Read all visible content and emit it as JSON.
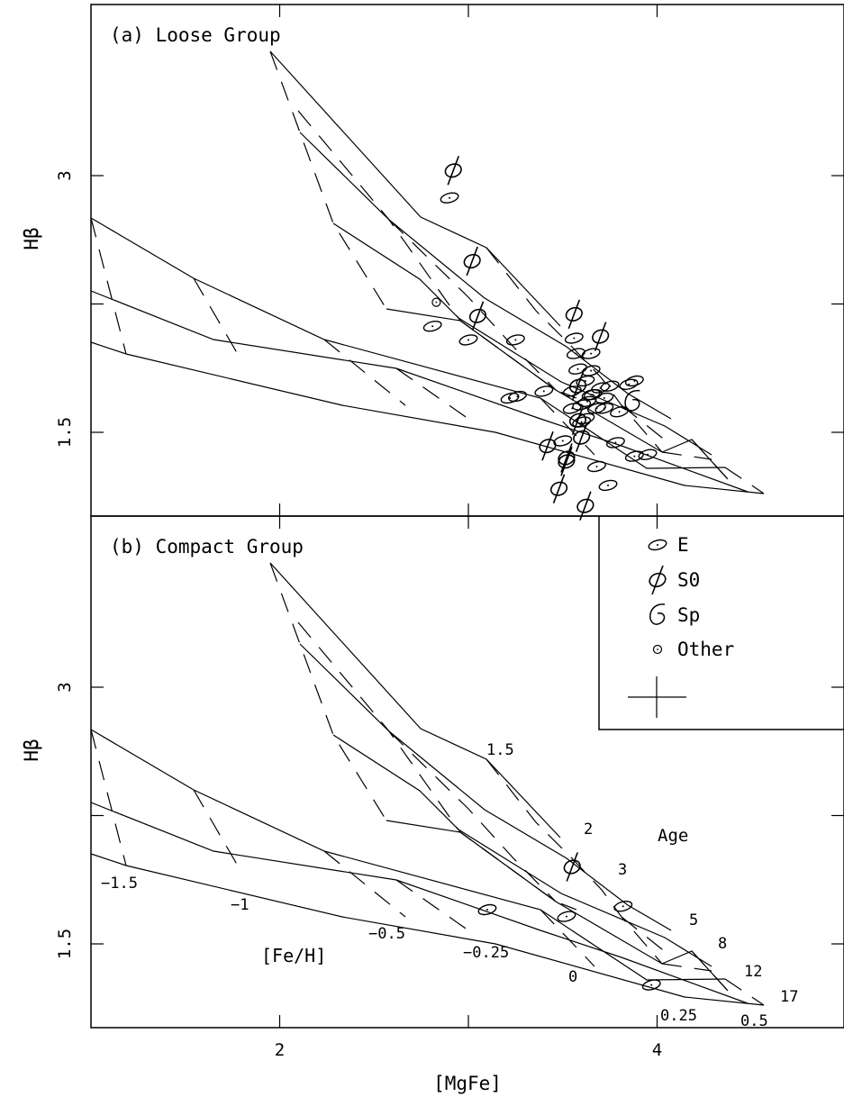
{
  "chart_data": [
    {
      "type": "scatter",
      "panel_label": "(a) Loose Group",
      "ylabel": "Hβ",
      "xlim": [
        1.0,
        5.0
      ],
      "ylim": [
        1.0,
        4.0
      ],
      "yticks": [
        {
          "value": 3.0,
          "label": "3"
        },
        {
          "value": 1.5,
          "label": "1.5"
        }
      ],
      "grid": "age-metallicity model grid (solid = constant age, dashed = constant [Fe/H])",
      "series": [
        {
          "name": "E",
          "marker": "ellipse",
          "points": [
            [
              2.9,
              2.87
            ],
            [
              3.0,
              2.04
            ],
            [
              3.25,
              2.04
            ],
            [
              2.81,
              2.12
            ],
            [
              3.22,
              1.7
            ],
            [
              3.26,
              1.71
            ],
            [
              3.4,
              1.74
            ],
            [
              3.56,
              2.05
            ],
            [
              3.57,
              1.96
            ],
            [
              3.58,
              1.87
            ],
            [
              3.62,
              1.8
            ],
            [
              3.55,
              1.74
            ],
            [
              3.55,
              1.64
            ],
            [
              3.6,
              1.66
            ],
            [
              3.63,
              1.68
            ],
            [
              3.66,
              1.72
            ],
            [
              3.7,
              1.76
            ],
            [
              3.72,
              1.7
            ],
            [
              3.75,
              1.77
            ],
            [
              3.8,
              1.62
            ],
            [
              3.85,
              1.78
            ],
            [
              3.88,
              1.8
            ],
            [
              3.6,
              1.56
            ],
            [
              3.62,
              1.58
            ],
            [
              3.65,
              1.96
            ],
            [
              3.65,
              1.86
            ],
            [
              3.65,
              1.72
            ],
            [
              3.68,
              1.64
            ],
            [
              3.72,
              1.64
            ],
            [
              3.78,
              1.44
            ],
            [
              3.88,
              1.36
            ],
            [
              3.95,
              1.37
            ],
            [
              3.68,
              1.3
            ],
            [
              3.74,
              1.19
            ],
            [
              3.5,
              1.45
            ]
          ]
        },
        {
          "name": "S0",
          "marker": "phi",
          "points": [
            [
              2.92,
              3.03
            ],
            [
              3.02,
              2.5
            ],
            [
              3.05,
              2.18
            ],
            [
              3.56,
              2.19
            ],
            [
              3.7,
              2.06
            ],
            [
              3.58,
              1.77
            ],
            [
              3.58,
              1.57
            ],
            [
              3.6,
              1.47
            ],
            [
              3.42,
              1.42
            ],
            [
              3.52,
              1.35
            ],
            [
              3.52,
              1.33
            ],
            [
              3.48,
              1.17
            ],
            [
              3.62,
              1.07
            ]
          ]
        },
        {
          "name": "Sp",
          "marker": "spiral",
          "points": [
            [
              3.87,
              1.68
            ]
          ]
        },
        {
          "name": "Other",
          "marker": "small-circle",
          "points": [
            [
              2.83,
              2.26
            ]
          ]
        }
      ]
    },
    {
      "type": "scatter",
      "panel_label": "(b) Compact Group",
      "ylabel": "Hβ",
      "xlabel": "[MgFe]",
      "xlim": [
        1.0,
        5.0
      ],
      "ylim": [
        1.0,
        4.0
      ],
      "xticks": [
        {
          "value": 2,
          "label": "2"
        },
        {
          "value": 4,
          "label": "4"
        }
      ],
      "yticks": [
        {
          "value": 3.0,
          "label": "3"
        },
        {
          "value": 1.5,
          "label": "1.5"
        }
      ],
      "age_labels": [
        "1.5",
        "2",
        "3",
        "5",
        "8",
        "12",
        "17"
      ],
      "feh_labels": [
        "−1.5",
        "−1",
        "−0.5",
        "−0.25",
        "0",
        "0.25",
        "0.5"
      ],
      "age_axis_title": "Age",
      "feh_axis_title": "[Fe/H]",
      "series": [
        {
          "name": "E",
          "marker": "ellipse",
          "points": [
            [
              3.1,
              1.7
            ],
            [
              3.52,
              1.66
            ],
            [
              3.82,
              1.72
            ],
            [
              3.97,
              1.26
            ]
          ]
        },
        {
          "name": "S0",
          "marker": "phi",
          "points": [
            [
              3.55,
              1.95
            ]
          ]
        }
      ]
    }
  ],
  "legend": {
    "placement": "right, between panels",
    "entries": [
      {
        "symbol": "ellipse",
        "label": "E"
      },
      {
        "symbol": "phi",
        "label": "S0"
      },
      {
        "symbol": "spiral",
        "label": "Sp"
      },
      {
        "symbol": "small-circle",
        "label": "Other"
      }
    ]
  }
}
